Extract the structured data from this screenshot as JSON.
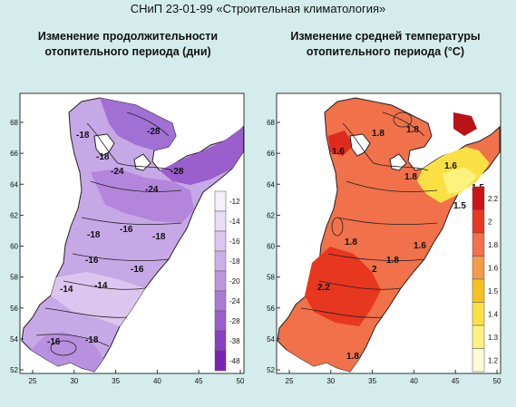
{
  "page_title": "СНиП 23-01-99 «Строительная климатология»",
  "maps": [
    {
      "title_line1": "Изменение продолжительности",
      "title_line2": "отопительного периода (дни)",
      "x_ticks": [
        "25",
        "30",
        "35",
        "40",
        "45",
        "50"
      ],
      "y_ticks": [
        "68",
        "66",
        "64",
        "62",
        "60",
        "58",
        "56",
        "54",
        "52"
      ],
      "legend": [
        "-12",
        "-14",
        "-16",
        "-18",
        "-20",
        "-24",
        "-28",
        "-38",
        "-48"
      ],
      "legend_colors": [
        "#f6f0fb",
        "#e9dcf5",
        "#dcc6ef",
        "#cdafe8",
        "#bd96e0",
        "#ab7ad6",
        "#9a5ecd",
        "#8840c2",
        "#7a22b8"
      ],
      "contour_labels": [
        "-18",
        "-28",
        "-18",
        "-24",
        "-28",
        "-24",
        "-18",
        "-16",
        "-16",
        "-18",
        "-14",
        "-16",
        "-18",
        "-14",
        "-16"
      ]
    },
    {
      "title_line1": "Изменение средней температуры",
      "title_line2": "отопительного периода (°C)",
      "x_ticks": [
        "25",
        "30",
        "35",
        "40",
        "45",
        "50"
      ],
      "y_ticks": [
        "68",
        "66",
        "64",
        "62",
        "60",
        "58",
        "56",
        "54",
        "52"
      ],
      "legend": [
        "2.2",
        "2",
        "1.8",
        "1.6",
        "1.5",
        "1.4",
        "1.3",
        "1.2"
      ],
      "legend_colors": [
        "#cc1418",
        "#e8371f",
        "#f0714a",
        "#f59a48",
        "#f8c11f",
        "#fbe043",
        "#fdf27e",
        "#fffbd6"
      ],
      "contour_labels": [
        "1.8",
        "1.8",
        "1.6",
        "1.8",
        "1.6",
        "1.5",
        "1.5",
        "1.8",
        "2",
        "1.8",
        "2.2",
        "1.8",
        "1.6"
      ]
    }
  ]
}
